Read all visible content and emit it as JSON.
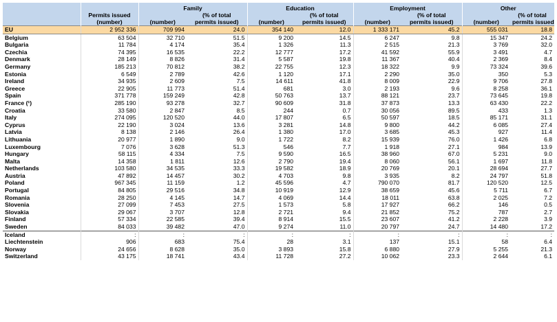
{
  "header": {
    "permits_issued": "Permits issued",
    "number": "(number)",
    "groups": [
      "Family",
      "Education",
      "Employment",
      "Other"
    ],
    "sub_number": "(number)",
    "sub_pct": "(% of total permits issued)"
  },
  "eu_row": [
    "EU",
    "2 952 336",
    "709 994",
    "24.0",
    "354 140",
    "12.0",
    "1 333 171",
    "45.2",
    "555 031",
    "18.8"
  ],
  "member_rows": [
    [
      "Belgium",
      "63 504",
      "32 710",
      "51.5",
      "9 200",
      "14.5",
      "6 247",
      "9.8",
      "15 347",
      "24.2"
    ],
    [
      "Bulgaria",
      "11 784",
      "4 174",
      "35.4",
      "1 326",
      "11.3",
      "2 515",
      "21.3",
      "3 769",
      "32.0"
    ],
    [
      "Czechia",
      "74 395",
      "16 535",
      "22.2",
      "12 777",
      "17.2",
      "41 592",
      "55.9",
      "3 491",
      "4.7"
    ],
    [
      "Denmark",
      "28 149",
      "8 826",
      "31.4",
      "5 587",
      "19.8",
      "11 367",
      "40.4",
      "2 369",
      "8.4"
    ],
    [
      "Germany",
      "185 213",
      "70 812",
      "38.2",
      "22 755",
      "12.3",
      "18 322",
      "9.9",
      "73 324",
      "39.6"
    ],
    [
      "Estonia",
      "6 549",
      "2 789",
      "42.6",
      "1 120",
      "17.1",
      "2 290",
      "35.0",
      "350",
      "5.3"
    ],
    [
      "Ireland",
      "34 935",
      "2 609",
      "7.5",
      "14 611",
      "41.8",
      "8 009",
      "22.9",
      "9 706",
      "27.8"
    ],
    [
      "Greece",
      "22 905",
      "11 773",
      "51.4",
      "681",
      "3.0",
      "2 193",
      "9.6",
      "8 258",
      "36.1"
    ],
    [
      "Spain",
      "371 778",
      "159 249",
      "42.8",
      "50 763",
      "13.7",
      "88 121",
      "23.7",
      "73 645",
      "19.8"
    ],
    [
      "France (¹)",
      "285 190",
      "93 278",
      "32.7",
      "90 609",
      "31.8",
      "37 873",
      "13.3",
      "63 430",
      "22.2"
    ],
    [
      "Croatia",
      "33 580",
      "2 847",
      "8.5",
      "244",
      "0.7",
      "30 056",
      "89.5",
      "433",
      "1.3"
    ],
    [
      "Italy",
      "274 095",
      "120 520",
      "44.0",
      "17 807",
      "6.5",
      "50 597",
      "18.5",
      "85 171",
      "31.1"
    ],
    [
      "Cyprus",
      "22 190",
      "3 024",
      "13.6",
      "3 281",
      "14.8",
      "9 800",
      "44.2",
      "6 085",
      "27.4"
    ],
    [
      "Latvia",
      "8 138",
      "2 146",
      "26.4",
      "1 380",
      "17.0",
      "3 685",
      "45.3",
      "927",
      "11.4"
    ],
    [
      "Lithuania",
      "20 977",
      "1 890",
      "9.0",
      "1 722",
      "8.2",
      "15 939",
      "76.0",
      "1 426",
      "6.8"
    ],
    [
      "Luxembourg",
      "7 076",
      "3 628",
      "51.3",
      "546",
      "7.7",
      "1 918",
      "27.1",
      "984",
      "13.9"
    ],
    [
      "Hungary",
      "58 115",
      "4 334",
      "7.5",
      "9 590",
      "16.5",
      "38 960",
      "67.0",
      "5 231",
      "9.0"
    ],
    [
      "Malta",
      "14 358",
      "1 811",
      "12.6",
      "2 790",
      "19.4",
      "8 060",
      "56.1",
      "1 697",
      "11.8"
    ],
    [
      "Netherlands",
      "103 580",
      "34 535",
      "33.3",
      "19 582",
      "18.9",
      "20 769",
      "20.1",
      "28 694",
      "27.7"
    ],
    [
      "Austria",
      "47 892",
      "14 457",
      "30.2",
      "4 703",
      "9.8",
      "3 935",
      "8.2",
      "24 797",
      "51.8"
    ],
    [
      "Poland",
      "967 345",
      "11 159",
      "1.2",
      "45 596",
      "4.7",
      "790 070",
      "81.7",
      "120 520",
      "12.5"
    ],
    [
      "Portugal",
      "84 805",
      "29 516",
      "34.8",
      "10 919",
      "12.9",
      "38 659",
      "45.6",
      "5 711",
      "6.7"
    ],
    [
      "Romania",
      "28 250",
      "4 145",
      "14.7",
      "4 069",
      "14.4",
      "18 011",
      "63.8",
      "2 025",
      "7.2"
    ],
    [
      "Slovenia",
      "27 099",
      "7 453",
      "27.5",
      "1 573",
      "5.8",
      "17 927",
      "66.2",
      "146",
      "0.5"
    ],
    [
      "Slovakia",
      "29 067",
      "3 707",
      "12.8",
      "2 721",
      "9.4",
      "21 852",
      "75.2",
      "787",
      "2.7"
    ],
    [
      "Finland",
      "57 334",
      "22 585",
      "39.4",
      "8 914",
      "15.5",
      "23 607",
      "41.2",
      "2 228",
      "3.9"
    ],
    [
      "Sweden",
      "84 033",
      "39 482",
      "47.0",
      "9 274",
      "11.0",
      "20 797",
      "24.7",
      "14 480",
      "17.2"
    ]
  ],
  "efta_rows": [
    [
      "Iceland",
      ":",
      ":",
      ":",
      ":",
      ":",
      ":",
      ":",
      ":",
      ":"
    ],
    [
      "Liechtenstein",
      "906",
      "683",
      "75.4",
      "28",
      "3.1",
      "137",
      "15.1",
      "58",
      "6.4"
    ],
    [
      "Norway",
      "24 656",
      "8 628",
      "35.0",
      "3 893",
      "15.8",
      "6 880",
      "27.9",
      "5 255",
      "21.3"
    ],
    [
      "Switzerland",
      "43 175",
      "18 741",
      "43.4",
      "11 728",
      "27.2",
      "10 062",
      "23.3",
      "2 644",
      "6.1"
    ]
  ]
}
